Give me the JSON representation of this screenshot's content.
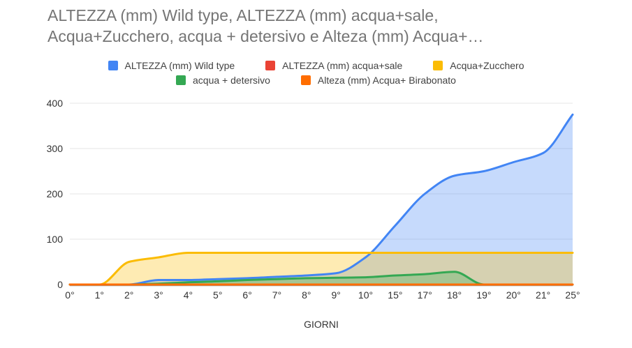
{
  "title": {
    "line1": "ALTEZZA (mm) Wild type,  ALTEZZA (mm) acqua+sale,",
    "line2": "Acqua+Zucchero, acqua + detersivo  e Alteza (mm) Acqua+…"
  },
  "chart_data": {
    "type": "area",
    "title": "ALTEZZA (mm) Wild type,  ALTEZZA (mm) acqua+sale, Acqua+Zucchero, acqua + detersivo  e Alteza (mm) Acqua+…",
    "categories": [
      "0°",
      "1°",
      "2°",
      "3°",
      "4°",
      "5°",
      "6°",
      "7°",
      "8°",
      "9°",
      "10°",
      "15°",
      "17°",
      "18°",
      "19°",
      "20°",
      "21°",
      "25°"
    ],
    "series": [
      {
        "name": "ALTEZZA (mm) Wild type",
        "color": "#4285F4",
        "values": [
          0,
          0,
          0,
          10,
          10,
          12,
          14,
          17,
          20,
          25,
          60,
          130,
          200,
          240,
          250,
          270,
          290,
          375
        ]
      },
      {
        "name": "ALTEZZA (mm) acqua+sale",
        "color": "#EA4335",
        "values": [
          0,
          0,
          0,
          0,
          0,
          0,
          0,
          0,
          0,
          0,
          0,
          0,
          0,
          0,
          0,
          0,
          0,
          0
        ]
      },
      {
        "name": "Acqua+Zucchero",
        "color": "#FBBC04",
        "values": [
          0,
          0,
          50,
          60,
          70,
          70,
          70,
          70,
          70,
          70,
          70,
          70,
          70,
          70,
          70,
          70,
          70,
          70
        ]
      },
      {
        "name": "acqua + detersivo",
        "color": "#34A853",
        "values": [
          0,
          0,
          0,
          2,
          5,
          7,
          10,
          12,
          14,
          15,
          16,
          20,
          23,
          28,
          0,
          0,
          0,
          0
        ]
      },
      {
        "name": "Alteza (mm) Acqua+ Birabonato",
        "color": "#FF6D00",
        "values": [
          0,
          0,
          0,
          0,
          0,
          0,
          0,
          0,
          0,
          0,
          0,
          0,
          0,
          0,
          0,
          0,
          0,
          0
        ]
      }
    ],
    "xlabel": "GIORNI",
    "ylabel": "",
    "ylim": [
      0,
      400
    ],
    "yticks": [
      0,
      100,
      200,
      300,
      400
    ],
    "grid": true,
    "legend_position": "top",
    "fill_opacity": 0.3,
    "smooth": true
  },
  "colors": {
    "title_text": "#757575",
    "axis_text": "#333333",
    "legend_text": "#424242",
    "gridline": "#e6e6e6",
    "baseline": "#9e9e9e",
    "background": "#ffffff"
  }
}
